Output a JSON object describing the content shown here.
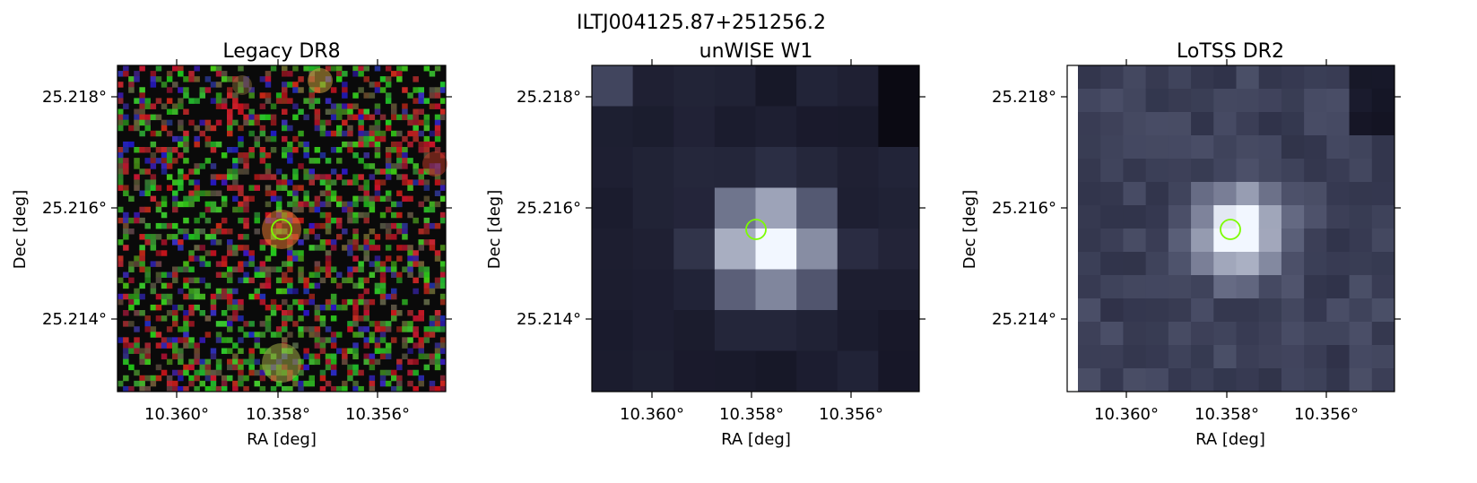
{
  "figure": {
    "suptitle": "ILTJ004125.87+251256.2"
  },
  "panels": [
    {
      "title": "Legacy DR8",
      "image_kind": "rgb-noise",
      "xlabel": "RA [deg]",
      "ylabel": "Dec [deg]",
      "xticks": [
        {
          "value": 10.36,
          "label": "10.360°"
        },
        {
          "value": 10.358,
          "label": "10.358°"
        },
        {
          "value": 10.356,
          "label": "10.356°"
        }
      ],
      "yticks": [
        {
          "value": 25.218,
          "label": "25.218°"
        },
        {
          "value": 25.216,
          "label": "25.216°"
        },
        {
          "value": 25.214,
          "label": "25.214°"
        }
      ],
      "marker_color": "#7cfc00"
    },
    {
      "title": "unWISE W1",
      "image_kind": "gray-blocks",
      "xlabel": "RA [deg]",
      "ylabel": "Dec [deg]",
      "xticks": [
        {
          "value": 10.36,
          "label": "10.360°"
        },
        {
          "value": 10.358,
          "label": "10.358°"
        },
        {
          "value": 10.356,
          "label": "10.356°"
        }
      ],
      "yticks": [
        {
          "value": 25.218,
          "label": "25.218°"
        },
        {
          "value": 25.216,
          "label": "25.216°"
        },
        {
          "value": 25.214,
          "label": "25.214°"
        }
      ],
      "marker_color": "#7cfc00"
    },
    {
      "title": "LoTSS DR2",
      "image_kind": "gray-blocks-fine",
      "xlabel": "RA [deg]",
      "ylabel": "Dec [deg]",
      "xticks": [
        {
          "value": 10.36,
          "label": "10.360°"
        },
        {
          "value": 10.358,
          "label": "10.358°"
        },
        {
          "value": 10.356,
          "label": "10.356°"
        }
      ],
      "yticks": [
        {
          "value": 25.218,
          "label": "25.218°"
        },
        {
          "value": 25.216,
          "label": "25.216°"
        },
        {
          "value": 25.214,
          "label": "25.214°"
        }
      ],
      "marker_color": "#7cfc00"
    }
  ],
  "colors": {
    "colormap_dark": "#000000",
    "colormap_mid": "#4a4a66",
    "colormap_light": "#ffffff"
  }
}
